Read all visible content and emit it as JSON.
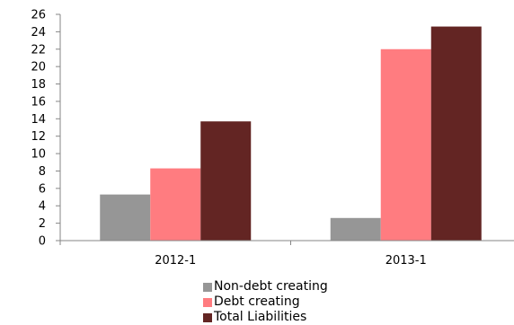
{
  "chart_data": {
    "type": "bar",
    "title": "",
    "xlabel": "",
    "ylabel": "",
    "categories": [
      "2012-1",
      "2013-1"
    ],
    "series": [
      {
        "name": "Non-debt creating",
        "color": "#969696",
        "values": [
          5.3,
          2.6
        ]
      },
      {
        "name": "Debt creating",
        "color": "#ff7c80",
        "values": [
          8.3,
          22.0
        ]
      },
      {
        "name": "Total Liabilities",
        "color": "#632523",
        "values": [
          13.7,
          24.6
        ]
      }
    ],
    "ylim": [
      0,
      26
    ],
    "yticks": [
      0,
      2,
      4,
      6,
      8,
      10,
      12,
      14,
      16,
      18,
      20,
      22,
      24,
      26
    ],
    "grid": false,
    "legend_position": "bottom"
  }
}
